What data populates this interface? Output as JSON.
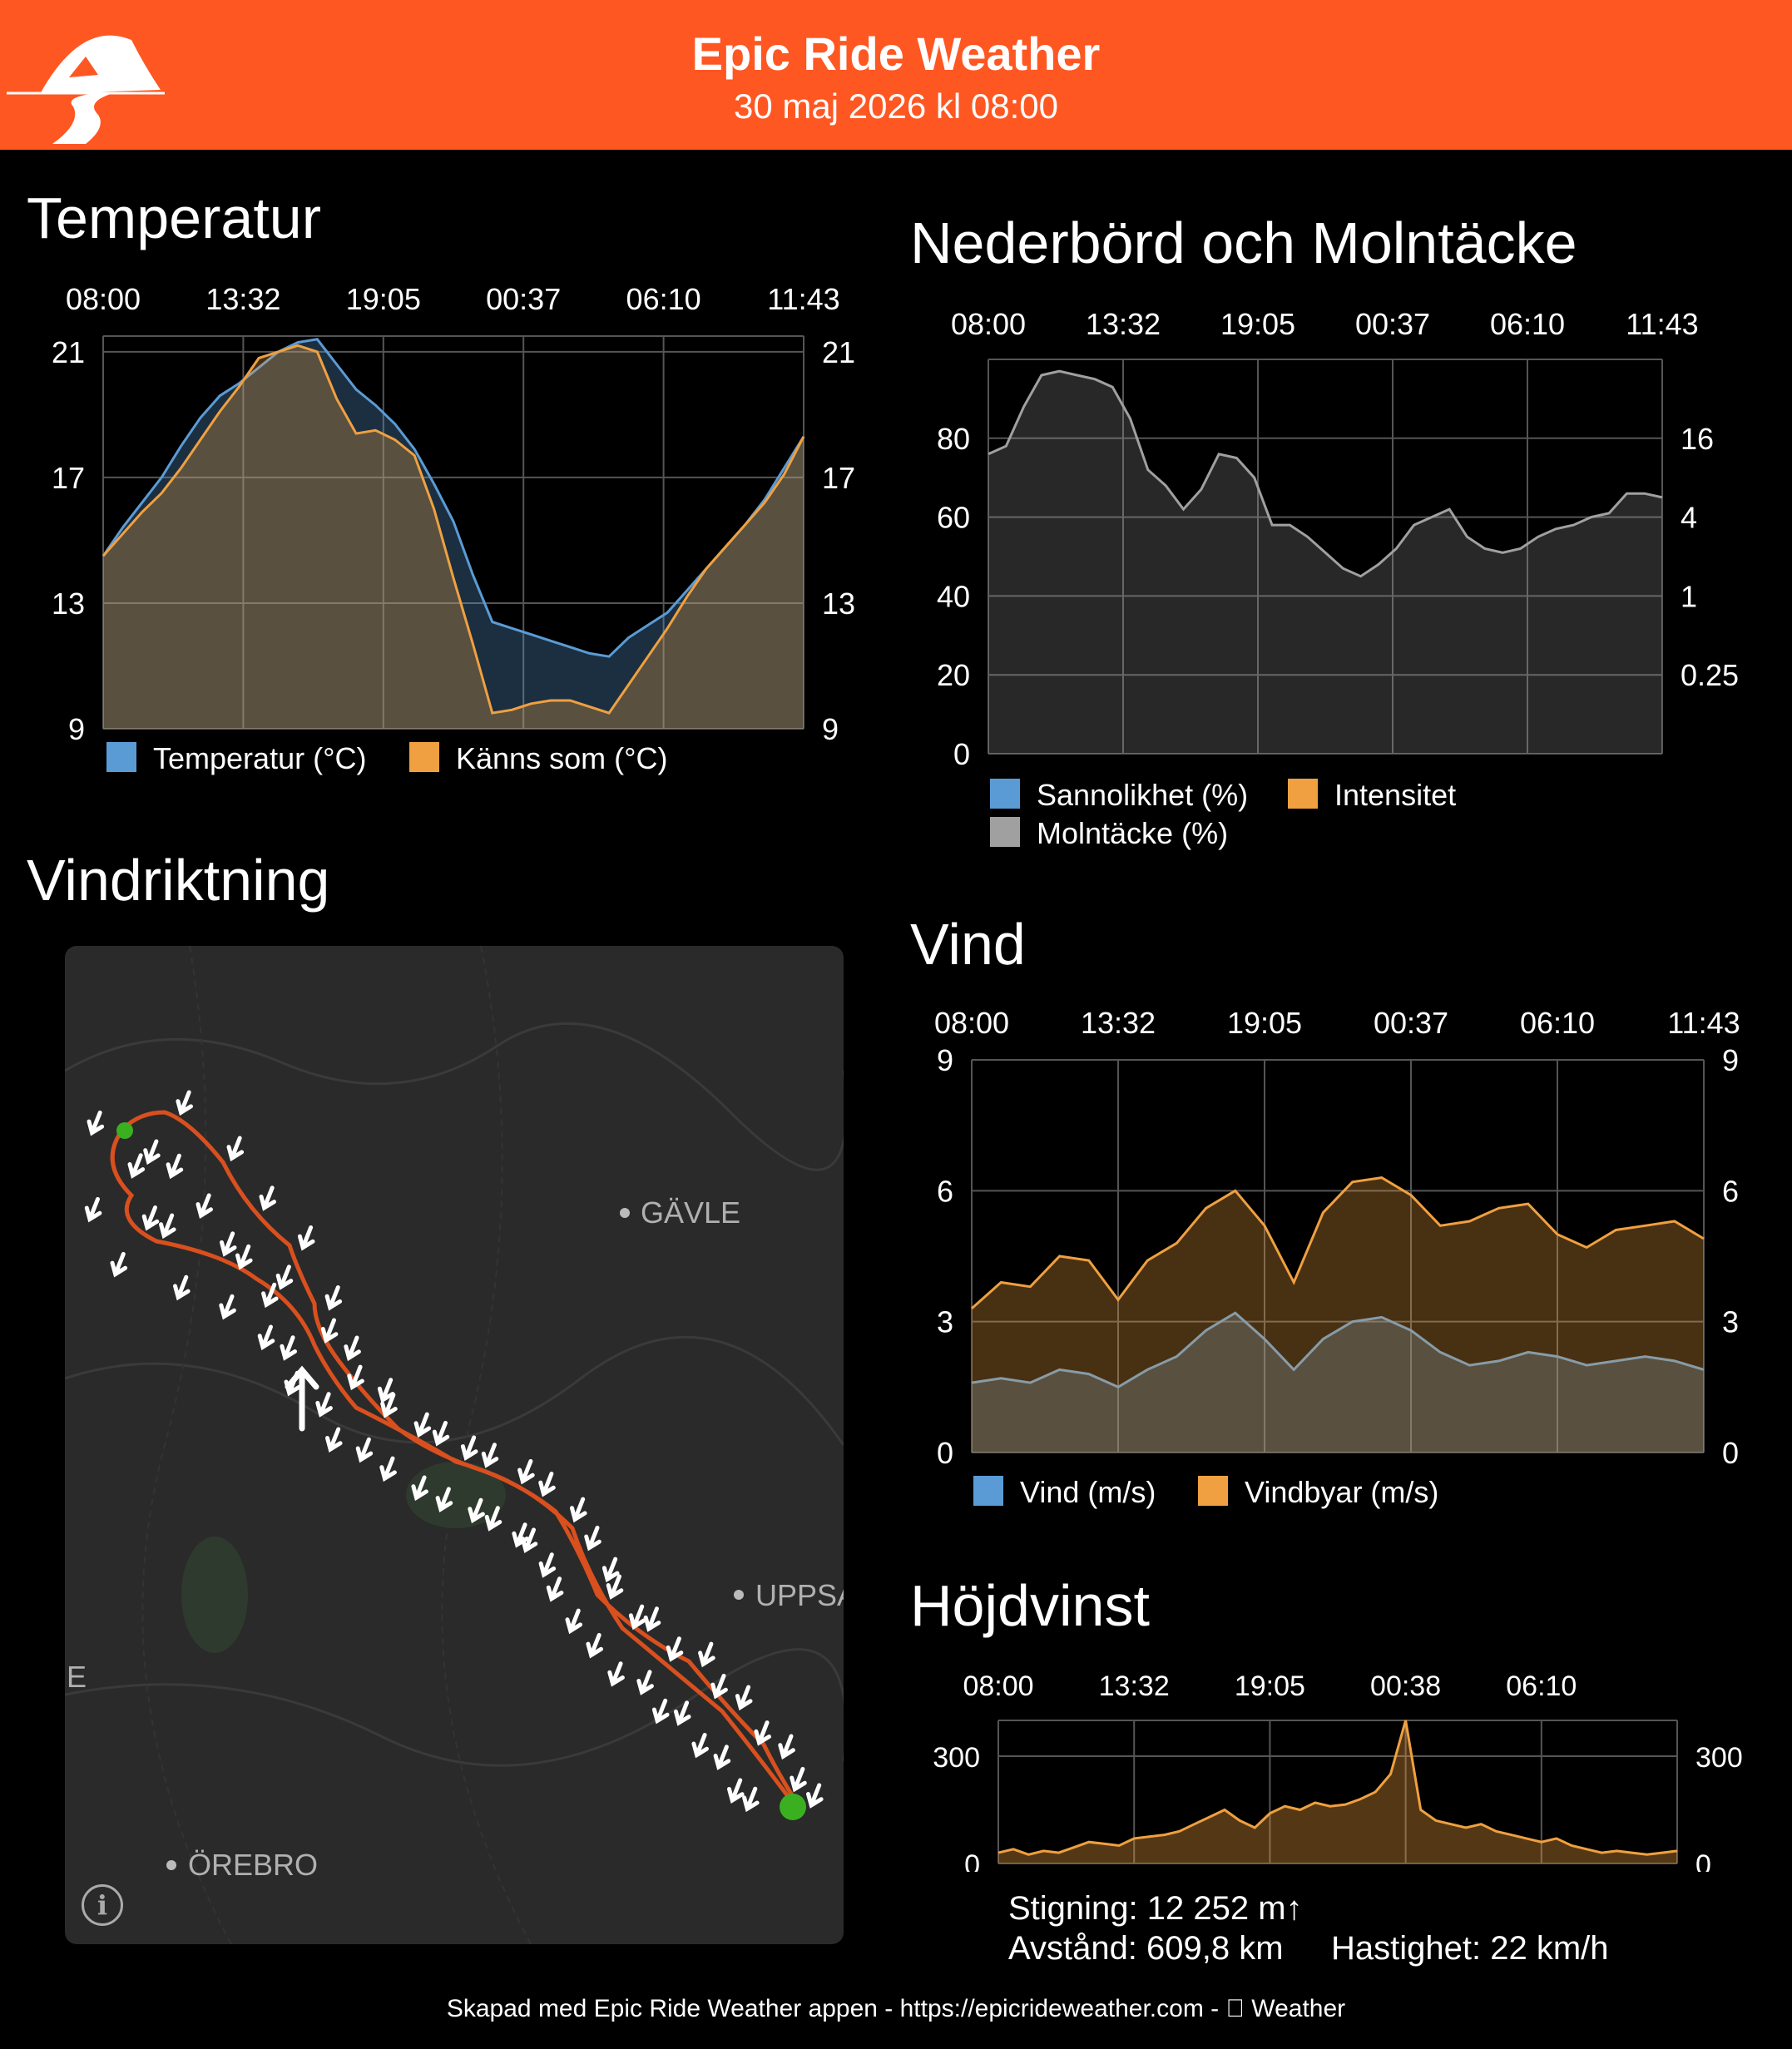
{
  "header": {
    "title": "Epic Ride Weather",
    "subtitle": "30 maj 2026 kl 08:00",
    "brand_color": "#ff5722"
  },
  "sections": {
    "temperature": "Temperatur",
    "precipitation": "Nederbörd och Molntäcke",
    "wind_direction": "Vindriktning",
    "wind": "Vind",
    "elevation": "Höjdvinst"
  },
  "map": {
    "labels": [
      "GÄVLE",
      "UPPSA",
      "E",
      "ÖREBRO"
    ],
    "route_color": "#d9501e"
  },
  "stats": {
    "climb": "Stigning: 12 252 m↑",
    "distance": "Avstånd: 609,8 km",
    "speed": "Hastighet: 22 km/h"
  },
  "footer": "Skapad med Epic Ride Weather appen - https://epicrideweather.com -  Weather",
  "chart_data": [
    {
      "id": "temperature",
      "type": "area",
      "x_ticks": [
        "08:00",
        "13:32",
        "19:05",
        "00:37",
        "06:10",
        "11:43"
      ],
      "y_ticks": [
        "9",
        "13",
        "17",
        "21"
      ],
      "ylim": [
        9,
        21.5
      ],
      "series": [
        {
          "name": "Temperatur (°C)",
          "color": "#5b9bd5",
          "values": [
            14.5,
            15.4,
            16.2,
            17.0,
            18.0,
            18.9,
            19.6,
            20.0,
            20.5,
            21.0,
            21.3,
            21.4,
            20.6,
            19.8,
            19.3,
            18.7,
            17.9,
            16.8,
            15.6,
            13.9,
            12.4,
            12.2,
            12.0,
            11.8,
            11.6,
            11.4,
            11.3,
            11.9,
            12.3,
            12.7,
            13.4,
            14.1,
            14.8,
            15.5,
            16.3,
            17.3,
            18.3
          ]
        },
        {
          "name": "Känns som (°C)",
          "color": "#f0a040",
          "values": [
            14.5,
            15.2,
            15.9,
            16.5,
            17.3,
            18.2,
            19.1,
            19.9,
            20.8,
            21.0,
            21.2,
            21.0,
            19.5,
            18.4,
            18.5,
            18.2,
            17.7,
            16.0,
            13.8,
            11.7,
            9.5,
            9.6,
            9.8,
            9.9,
            9.9,
            9.7,
            9.5,
            10.4,
            11.3,
            12.2,
            13.2,
            14.1,
            14.8,
            15.5,
            16.2,
            17.1,
            18.3
          ]
        }
      ]
    },
    {
      "id": "precipitation",
      "type": "area",
      "x_ticks": [
        "08:00",
        "13:32",
        "19:05",
        "00:37",
        "06:10",
        "11:43"
      ],
      "y_ticks_left": [
        "0",
        "20",
        "40",
        "60",
        "80"
      ],
      "y_ticks_right": [
        "0.25",
        "1",
        "4",
        "16"
      ],
      "ylim": [
        0,
        100
      ],
      "series": [
        {
          "name": "Sannolikhet (%)",
          "color": "#5b9bd5",
          "values": [
            0,
            0,
            0,
            0,
            0,
            0,
            0,
            0,
            0,
            0,
            0,
            0,
            0,
            0,
            0,
            0,
            0,
            0,
            0,
            0,
            0,
            0,
            0,
            0,
            0,
            0,
            0,
            0,
            0,
            0,
            0,
            0,
            0,
            0,
            0,
            0,
            0,
            0,
            0,
            0,
            0,
            0,
            0,
            0,
            0,
            0,
            0,
            0,
            0,
            0,
            0
          ]
        },
        {
          "name": "Intensitet",
          "color": "#f0a040",
          "values": [
            0,
            0,
            0,
            0,
            0,
            0,
            0,
            0,
            0,
            0,
            0,
            0,
            0,
            0,
            0,
            0,
            0,
            0,
            0,
            0,
            0,
            0,
            0,
            0,
            0,
            0,
            0,
            0,
            0,
            0,
            0,
            0,
            0,
            0,
            0,
            0,
            0,
            0,
            0,
            0,
            0,
            0,
            0,
            0,
            0,
            0,
            0,
            0,
            0,
            0,
            0
          ]
        },
        {
          "name": "Molntäcke (%)",
          "color": "#a0a0a0",
          "values": [
            76,
            78,
            88,
            96,
            97,
            96,
            95,
            93,
            85,
            72,
            68,
            62,
            67,
            76,
            75,
            70,
            58,
            58,
            55,
            51,
            47,
            45,
            48,
            52,
            58,
            60,
            62,
            55,
            52,
            51,
            52,
            55,
            57,
            58,
            60,
            61,
            66,
            66,
            65,
            0,
            0,
            0,
            0,
            0,
            0,
            0,
            0,
            0,
            0,
            0,
            0
          ]
        }
      ]
    },
    {
      "id": "wind",
      "type": "area",
      "x_ticks": [
        "08:00",
        "13:32",
        "19:05",
        "00:37",
        "06:10",
        "11:43"
      ],
      "y_ticks": [
        "0",
        "3",
        "6",
        "9"
      ],
      "ylim": [
        0,
        9
      ],
      "series": [
        {
          "name": "Vind (m/s)",
          "color": "#5b9bd5",
          "values": [
            1.6,
            1.7,
            1.6,
            1.9,
            1.8,
            1.5,
            1.9,
            2.2,
            2.8,
            3.2,
            2.6,
            1.9,
            2.6,
            3.0,
            3.1,
            2.8,
            2.3,
            2.0,
            2.1,
            2.3,
            2.2,
            2.0,
            2.1,
            2.2,
            2.1,
            1.9
          ]
        },
        {
          "name": "Vindbyar (m/s)",
          "color": "#f0a040",
          "values": [
            3.3,
            3.9,
            3.8,
            4.5,
            4.4,
            3.5,
            4.4,
            4.8,
            5.6,
            6.0,
            5.2,
            3.9,
            5.5,
            6.2,
            6.3,
            5.9,
            5.2,
            5.3,
            5.6,
            5.7,
            5.0,
            4.7,
            5.1,
            5.2,
            5.3,
            4.9
          ]
        }
      ]
    },
    {
      "id": "elevation",
      "type": "area",
      "x_ticks": [
        "08:00",
        "13:32",
        "19:05",
        "00:38",
        "06:10"
      ],
      "y_ticks": [
        "0",
        "300"
      ],
      "ylim": [
        0,
        400
      ],
      "series": [
        {
          "name": "",
          "color": "#f0a040",
          "values": [
            30,
            40,
            25,
            35,
            30,
            45,
            60,
            55,
            50,
            70,
            75,
            80,
            90,
            110,
            130,
            150,
            120,
            100,
            140,
            160,
            150,
            170,
            160,
            165,
            180,
            200,
            250,
            400,
            150,
            120,
            110,
            100,
            110,
            90,
            80,
            70,
            60,
            70,
            50,
            40,
            30,
            35,
            30,
            25,
            30,
            35
          ]
        }
      ]
    }
  ]
}
